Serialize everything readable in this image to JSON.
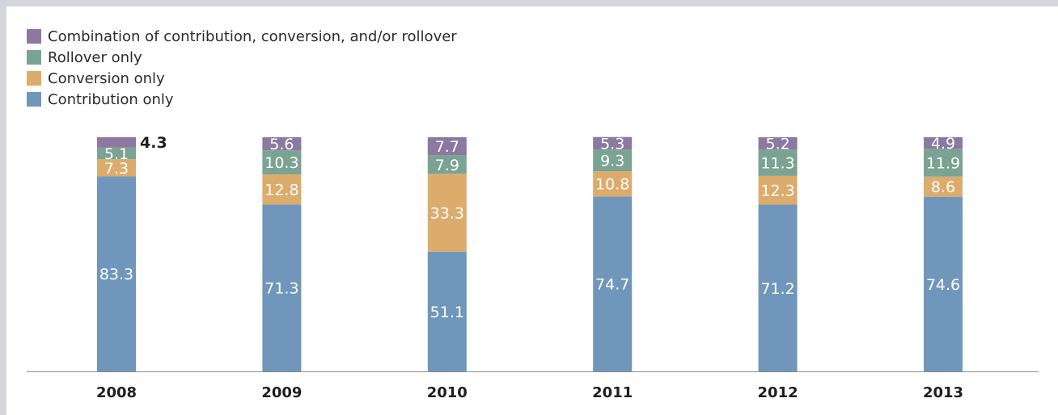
{
  "chart_data": {
    "type": "bar",
    "stacked": true,
    "categories": [
      "2008",
      "2009",
      "2010",
      "2011",
      "2012",
      "2013"
    ],
    "series": [
      {
        "name": "Contribution only",
        "values": [
          83.3,
          71.3,
          51.1,
          74.7,
          71.2,
          74.6
        ],
        "color": "#7097bb"
      },
      {
        "name": "Conversion only",
        "values": [
          7.3,
          12.8,
          33.3,
          10.8,
          12.3,
          8.6
        ],
        "color": "#dcac6c"
      },
      {
        "name": "Rollover only",
        "values": [
          5.1,
          10.3,
          7.9,
          9.3,
          11.3,
          11.9
        ],
        "color": "#7aa393"
      },
      {
        "name": "Combination of contribution, conversion, and/or rollover",
        "values": [
          4.3,
          5.6,
          7.7,
          5.3,
          5.2,
          4.9
        ],
        "color": "#8c78a0"
      }
    ],
    "legend_order": [
      3,
      2,
      1,
      0
    ],
    "legend_position": "top-left",
    "label_outside": [
      {
        "category_index": 0,
        "series_index": 3
      }
    ],
    "ylim": [
      0,
      100
    ],
    "grid": false,
    "title": "",
    "xlabel": "",
    "ylabel": ""
  }
}
